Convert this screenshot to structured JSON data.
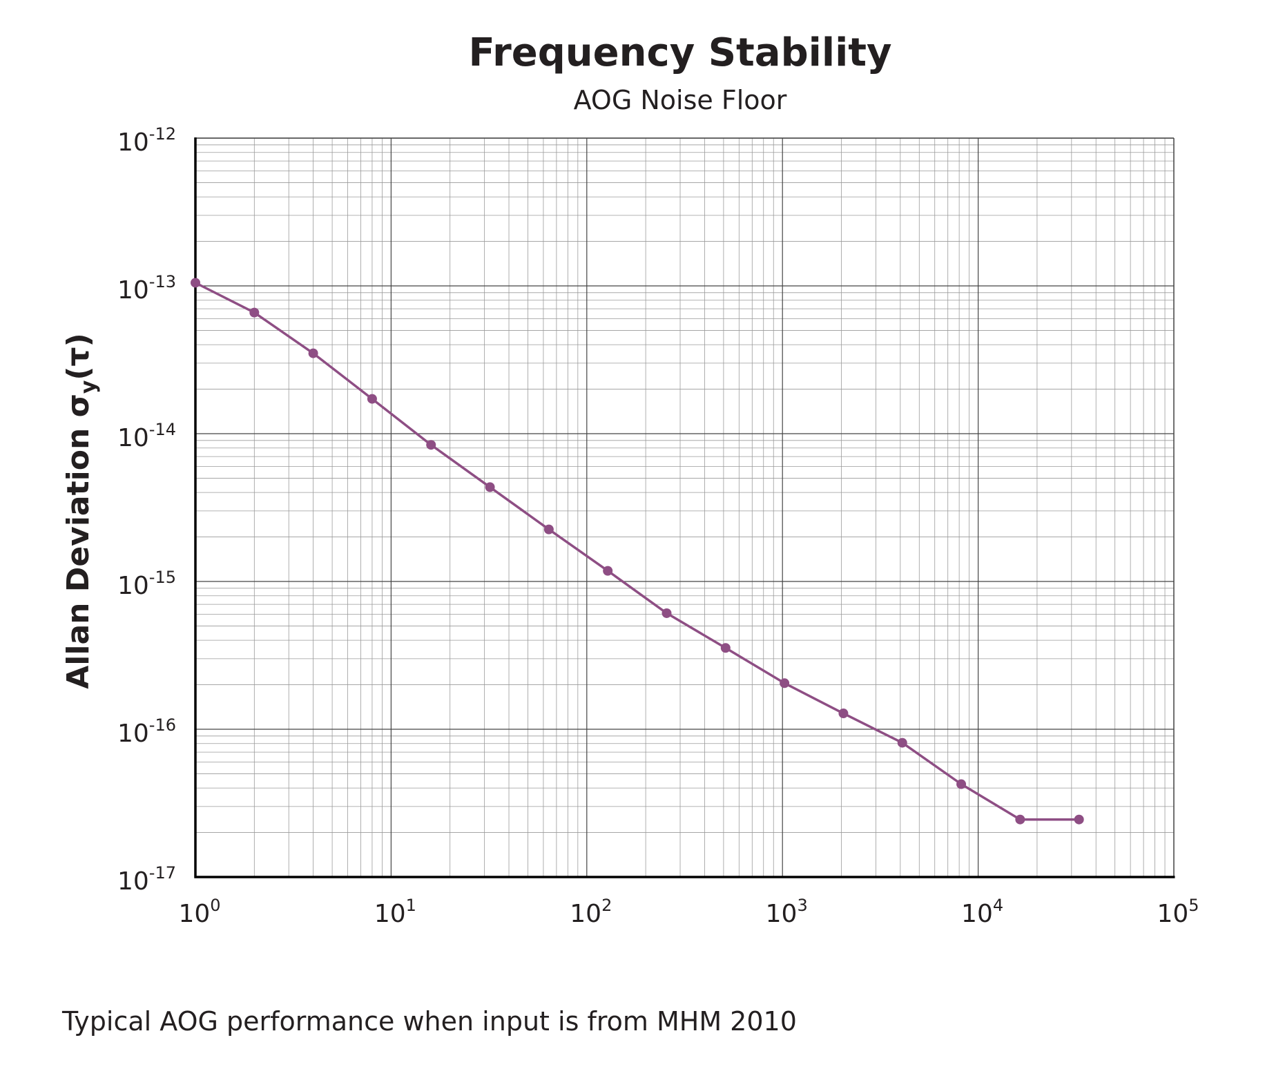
{
  "chart_data": {
    "type": "line",
    "title": "Frequency Stability",
    "subtitle": "AOG Noise Floor",
    "xlabel": "",
    "ylabel": {
      "main": "Allan Deviation σ",
      "sub": "y",
      "suffix": "(τ)"
    },
    "xscale": "log",
    "yscale": "log",
    "xlim": [
      1,
      100000
    ],
    "ylim": [
      1e-17,
      1e-12
    ],
    "grid": true,
    "x_ticks": [
      {
        "base": "10",
        "exp": "0"
      },
      {
        "base": "10",
        "exp": "1"
      },
      {
        "base": "10",
        "exp": "2"
      },
      {
        "base": "10",
        "exp": "3"
      },
      {
        "base": "10",
        "exp": "4"
      },
      {
        "base": "10",
        "exp": "5"
      }
    ],
    "y_ticks": [
      {
        "base": "10",
        "exp": "-12"
      },
      {
        "base": "10",
        "exp": "-13"
      },
      {
        "base": "10",
        "exp": "-14"
      },
      {
        "base": "10",
        "exp": "-15"
      },
      {
        "base": "10",
        "exp": "-16"
      },
      {
        "base": "10",
        "exp": "-17"
      }
    ],
    "series": [
      {
        "color": "#8e4e84",
        "x": [
          1,
          2,
          4,
          8,
          16,
          32,
          64,
          128,
          256,
          512,
          1024,
          2048,
          4096,
          8192,
          16384,
          32768
        ],
        "y": [
          1.05e-13,
          6.6e-14,
          3.5e-14,
          1.72e-14,
          8.4e-15,
          4.35e-15,
          2.25e-15,
          1.18e-15,
          6.1e-16,
          3.55e-16,
          2.05e-16,
          1.28e-16,
          8.1e-17,
          4.25e-17,
          2.45e-17,
          2.45e-17
        ]
      }
    ]
  },
  "caption": "Typical AOG performance when input is from MHM 2010"
}
